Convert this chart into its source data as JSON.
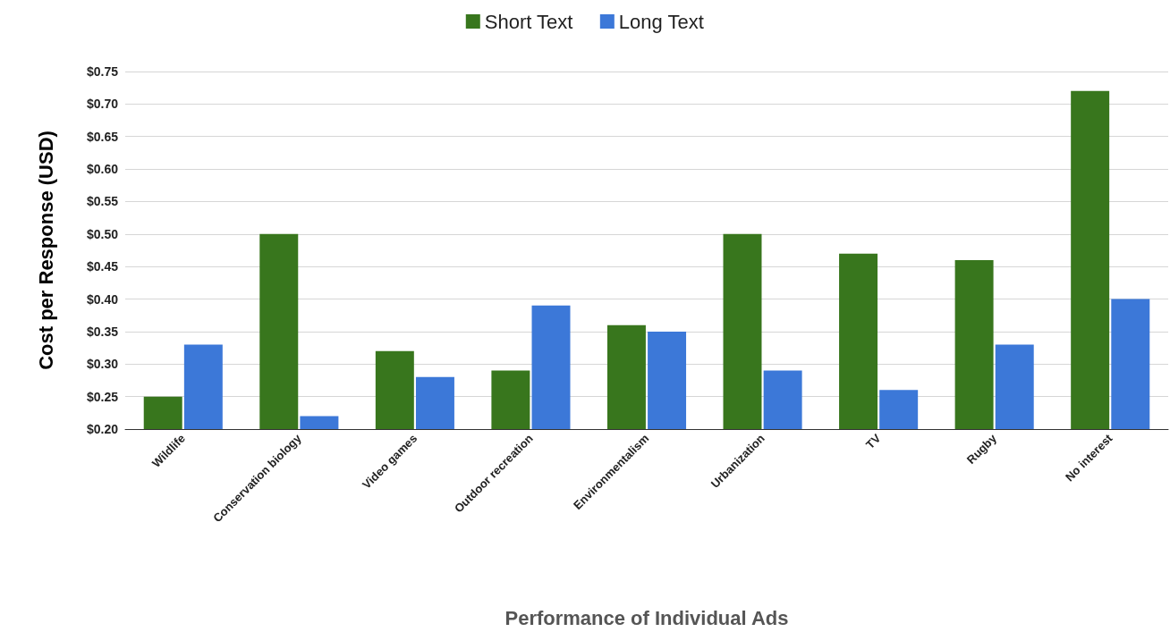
{
  "chart_data": {
    "type": "bar",
    "xlabel": "Performance of Individual Ads",
    "ylabel": "Cost per Response (USD)",
    "categories": [
      "Wildlife",
      "Conservation biology",
      "Video games",
      "Outdoor recreation",
      "Environmentalism",
      "Urbanization",
      "TV",
      "Rugby",
      "No interest"
    ],
    "series": [
      {
        "name": "Short Text",
        "color": "#38761d",
        "values": [
          0.25,
          0.5,
          0.32,
          0.29,
          0.36,
          0.5,
          0.47,
          0.46,
          0.72
        ]
      },
      {
        "name": "Long Text",
        "color": "#3c78d8",
        "values": [
          0.33,
          0.22,
          0.28,
          0.39,
          0.35,
          0.29,
          0.26,
          0.33,
          0.4
        ]
      }
    ],
    "ylim": [
      0.2,
      0.75
    ],
    "yticks": [
      {
        "value": 0.2,
        "label": "$0.20"
      },
      {
        "value": 0.25,
        "label": "$0.25"
      },
      {
        "value": 0.3,
        "label": "$0.30"
      },
      {
        "value": 0.35,
        "label": "$0.35"
      },
      {
        "value": 0.4,
        "label": "$0.40"
      },
      {
        "value": 0.45,
        "label": "$0.45"
      },
      {
        "value": 0.5,
        "label": "$0.50"
      },
      {
        "value": 0.55,
        "label": "$0.55"
      },
      {
        "value": 0.6,
        "label": "$0.60"
      },
      {
        "value": 0.65,
        "label": "$0.65"
      },
      {
        "value": 0.7,
        "label": "$0.70"
      },
      {
        "value": 0.75,
        "label": "$0.75"
      }
    ],
    "grid": "y",
    "legend": "top"
  }
}
